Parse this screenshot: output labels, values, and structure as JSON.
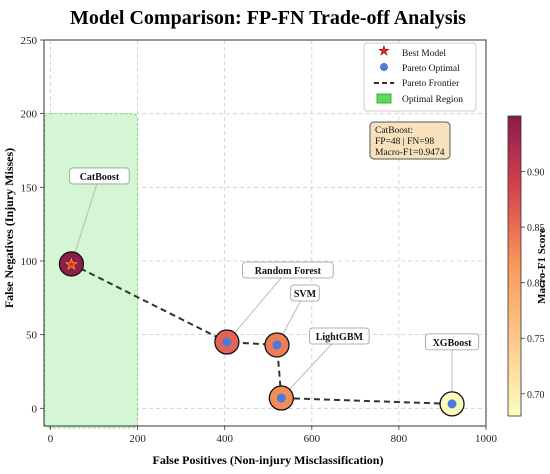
{
  "chart_data": {
    "type": "scatter",
    "title": "Model Comparison: FP-FN Trade-off Analysis",
    "xlabel": "False Positives (Non-injury Misclassification)",
    "ylabel": "False Negatives (Injury Misses)",
    "xlim": [
      -15,
      1000
    ],
    "ylim": [
      -12,
      250
    ],
    "xticks": [
      0,
      200,
      400,
      600,
      800,
      1000
    ],
    "yticks": [
      0,
      50,
      100,
      150,
      200,
      250
    ],
    "grid": true,
    "legend_position": "top-right",
    "points": [
      {
        "label": "CatBoost",
        "x": 48,
        "y": 98,
        "f1": 0.9474,
        "best": true
      },
      {
        "label": "Random Forest",
        "x": 405,
        "y": 45,
        "f1": 0.858
      },
      {
        "label": "SVM",
        "x": 520,
        "y": 43,
        "f1": 0.838
      },
      {
        "label": "LightGBM",
        "x": 530,
        "y": 7,
        "f1": 0.825
      },
      {
        "label": "XGBoost",
        "x": 922,
        "y": 3,
        "f1": 0.682
      }
    ],
    "pareto_frontier": [
      [
        48,
        98
      ],
      [
        405,
        45
      ],
      [
        520,
        43
      ],
      [
        530,
        7
      ],
      [
        922,
        3
      ]
    ],
    "optimal_region": {
      "x": [
        0,
        200
      ],
      "y": [
        0,
        200
      ]
    },
    "legend": [
      "Best Model",
      "Pareto Optimal",
      "Pareto Frontier",
      "Optimal Region"
    ],
    "colorbar": {
      "label": "Macro-F1 Score",
      "range": [
        0.68,
        0.95
      ],
      "ticks": [
        "0.70",
        "0.75",
        "0.80",
        "0.85",
        "0.90"
      ]
    },
    "info_box": [
      "CatBoost:",
      "FP=48 | FN=98",
      "Macro-F1=0.9474"
    ],
    "colors": {
      "optimal_region_fill": "#cdf5cd",
      "optimal_region_edge": "#77cc77",
      "pareto_point": "#4a7bd9",
      "frontier_line": "#333333",
      "best_marker": "#e8261c",
      "info_box_fill": "#f7e2bd"
    }
  }
}
